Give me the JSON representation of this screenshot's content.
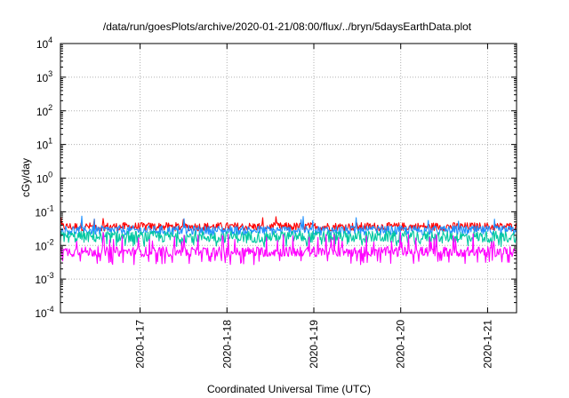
{
  "chart_data": {
    "type": "line",
    "title": "/data/run/goesPlots/archive/2020-01-21/08:00/flux/../bryn/5daysEarthData.plot",
    "xlabel": "Coordinated Universal Time (UTC)",
    "ylabel": "cGy/day",
    "yscale": "log",
    "ylim": [
      0.0001,
      10000
    ],
    "y_ticks": [
      {
        "base": "10",
        "exp": "-4",
        "value": 0.0001
      },
      {
        "base": "10",
        "exp": "-3",
        "value": 0.001
      },
      {
        "base": "10",
        "exp": "-2",
        "value": 0.01
      },
      {
        "base": "10",
        "exp": "-1",
        "value": 0.1
      },
      {
        "base": "10",
        "exp": "0",
        "value": 1
      },
      {
        "base": "10",
        "exp": "1",
        "value": 10
      },
      {
        "base": "10",
        "exp": "2",
        "value": 100
      },
      {
        "base": "10",
        "exp": "3",
        "value": 1000
      },
      {
        "base": "10",
        "exp": "4",
        "value": 10000
      }
    ],
    "xlim": [
      "2020-01-16T02:00",
      "2020-01-21T08:00"
    ],
    "x_ticks": [
      "2020-1-17",
      "2020-1-18",
      "2020-1-19",
      "2020-1-20",
      "2020-1-21"
    ],
    "grid": true,
    "series": [
      {
        "color": "#ff0000",
        "level": 0.036,
        "spread": 0.25,
        "spike_max": 0.072
      },
      {
        "color": "#1e90ff",
        "level": 0.028,
        "spread": 0.28,
        "spike_max": 0.075
      },
      {
        "color": "#00c8a0",
        "level": 0.018,
        "spread": 0.35,
        "dip_min": 0.01
      },
      {
        "color": "#ff00ff",
        "level": 0.0065,
        "spread": 0.3,
        "spike_max": 0.025,
        "dip_min": 0.003
      }
    ]
  }
}
